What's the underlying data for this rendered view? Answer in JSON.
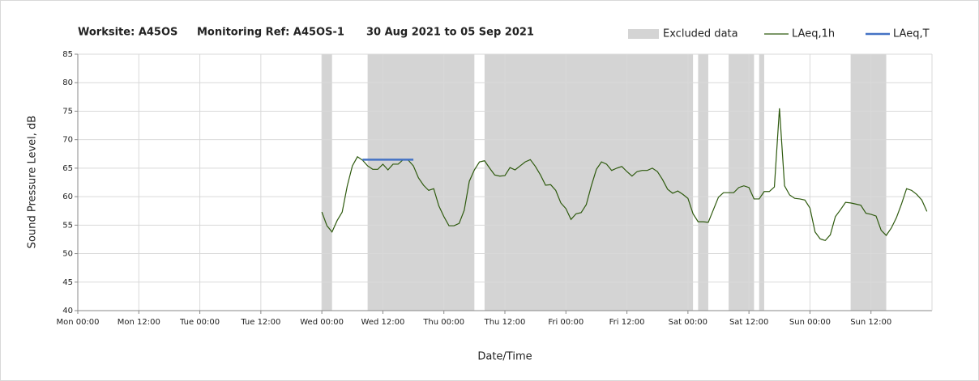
{
  "chart_data": {
    "type": "line",
    "title_parts": [
      "Worksite: A45OS",
      "Monitoring Ref: A45OS-1",
      "30 Aug 2021 to 05 Sep 2021"
    ],
    "x_label": "Date/Time",
    "y_label": "Sound Pressure Level, dB",
    "xlim": [
      0,
      168
    ],
    "xticks": [
      {
        "value": 0,
        "label": "Mon 00:00"
      },
      {
        "value": 12,
        "label": "Mon 12:00"
      },
      {
        "value": 24,
        "label": "Tue 00:00"
      },
      {
        "value": 36,
        "label": "Tue 12:00"
      },
      {
        "value": 48,
        "label": "Wed 00:00"
      },
      {
        "value": 60,
        "label": "Wed 12:00"
      },
      {
        "value": 72,
        "label": "Thu 00:00"
      },
      {
        "value": 84,
        "label": "Thu 12:00"
      },
      {
        "value": 96,
        "label": "Fri 00:00"
      },
      {
        "value": 108,
        "label": "Fri 12:00"
      },
      {
        "value": 120,
        "label": "Sat 00:00"
      },
      {
        "value": 132,
        "label": "Sat 12:00"
      },
      {
        "value": 144,
        "label": "Sun 00:00"
      },
      {
        "value": 156,
        "label": "Sun 12:00"
      }
    ],
    "ylim": [
      40,
      85
    ],
    "yticks": [
      40,
      45,
      50,
      55,
      60,
      65,
      70,
      75,
      80,
      85
    ],
    "grid": true,
    "legend": "top-right",
    "excluded": {
      "name": "Excluded data",
      "color": "#d4d4d4",
      "ranges": [
        [
          48,
          50
        ],
        [
          57,
          78
        ],
        [
          80,
          121
        ],
        [
          122,
          124
        ],
        [
          128,
          133
        ],
        [
          134,
          135
        ],
        [
          152,
          159
        ]
      ]
    },
    "series": [
      {
        "name": "LAeq,1h",
        "color": "#2e5a0e",
        "x": [
          48,
          49,
          50,
          51,
          52,
          53,
          54,
          55,
          56,
          57,
          58,
          59,
          60,
          61,
          62,
          63,
          64,
          65,
          66,
          67,
          68,
          69,
          70,
          71,
          72,
          73,
          74,
          75,
          76,
          77,
          78,
          79,
          80,
          81,
          82,
          83,
          84,
          85,
          86,
          87,
          88,
          89,
          90,
          91,
          92,
          93,
          94,
          95,
          96,
          97,
          98,
          99,
          100,
          101,
          102,
          103,
          104,
          105,
          106,
          107,
          108,
          109,
          110,
          111,
          112,
          113,
          114,
          115,
          116,
          117,
          118,
          119,
          120,
          121,
          122,
          123,
          124,
          125,
          126,
          127,
          128,
          129,
          130,
          131,
          132,
          133,
          134,
          135,
          136,
          137,
          138,
          139,
          140,
          141,
          142,
          143,
          144,
          145,
          146,
          147,
          148,
          149,
          150,
          151,
          152,
          153,
          154,
          155,
          156,
          157,
          158,
          159,
          160,
          161,
          162,
          163,
          164,
          165,
          166,
          167
        ],
        "values": [
          57.3,
          54.9,
          53.8,
          55.8,
          57.3,
          61.9,
          65.4,
          67.0,
          66.4,
          65.4,
          64.8,
          64.8,
          65.7,
          64.7,
          65.7,
          65.7,
          66.5,
          66.4,
          65.4,
          63.3,
          62.0,
          61.1,
          61.4,
          58.4,
          56.5,
          54.9,
          54.9,
          55.3,
          57.6,
          62.7,
          64.7,
          66.1,
          66.3,
          65.0,
          63.8,
          63.6,
          63.7,
          65.1,
          64.7,
          65.4,
          66.1,
          66.5,
          65.3,
          63.8,
          62.0,
          62.1,
          61.1,
          58.9,
          57.9,
          56.0,
          57.0,
          57.2,
          58.6,
          61.9,
          64.8,
          66.1,
          65.7,
          64.6,
          65.0,
          65.3,
          64.4,
          63.6,
          64.4,
          64.6,
          64.6,
          65.0,
          64.4,
          63.0,
          61.3,
          60.6,
          61.0,
          60.4,
          59.7,
          57.0,
          55.6,
          55.6,
          55.5,
          57.7,
          59.9,
          60.7,
          60.7,
          60.7,
          61.6,
          61.9,
          61.6,
          59.6,
          59.6,
          60.9,
          60.9,
          61.7,
          75.5,
          61.9,
          60.3,
          59.7,
          59.6,
          59.4,
          58.0,
          53.8,
          52.6,
          52.3,
          53.3,
          56.5,
          57.7,
          59.0,
          58.9,
          58.7,
          58.5,
          57.1,
          56.9,
          56.6,
          54.1,
          53.2,
          54.5,
          56.3,
          58.7,
          61.4,
          61.1,
          60.4,
          59.4,
          57.4
        ]
      },
      {
        "name": "LAeq,T",
        "color": "#4472c4",
        "x": [
          56,
          66
        ],
        "values": [
          66.5,
          66.5
        ]
      }
    ]
  }
}
